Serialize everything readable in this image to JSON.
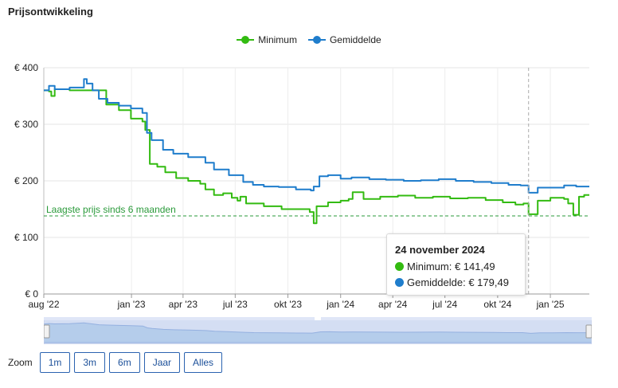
{
  "title": "Prijsontwikkeling",
  "colors": {
    "minimum": "#33bb11",
    "gemiddelde": "#1f7dcc",
    "reference": "#2a9a3a"
  },
  "legend": [
    {
      "label": "Minimum",
      "series": "minimum"
    },
    {
      "label": "Gemiddelde",
      "series": "gemiddelde"
    }
  ],
  "reference_line": {
    "label": "Laagste prijs sinds 6 maanden",
    "value": 138
  },
  "tooltip": {
    "date": "24 november 2024",
    "rows": [
      {
        "label": "Minimum: € 141,49",
        "series": "minimum"
      },
      {
        "label": "Gemiddelde: € 179,49",
        "series": "gemiddelde"
      }
    ]
  },
  "zoom": {
    "label": "Zoom",
    "buttons": [
      "1m",
      "3m",
      "6m",
      "Jaar",
      "Alles"
    ]
  },
  "chart_data": {
    "type": "line",
    "x_range": [
      "2022-08-01",
      "2025-03-10"
    ],
    "ylim": [
      0,
      400
    ],
    "y_ticks": [
      {
        "value": 0,
        "label": "€ 0"
      },
      {
        "value": 100,
        "label": "€ 100"
      },
      {
        "value": 200,
        "label": "€ 200"
      },
      {
        "value": 300,
        "label": "€ 300"
      },
      {
        "value": 400,
        "label": "€ 400"
      }
    ],
    "x_ticks": [
      {
        "date": "2022-08-01",
        "label": "aug '22"
      },
      {
        "date": "2023-01-01",
        "label": "jan '23"
      },
      {
        "date": "2023-04-01",
        "label": "apr '23"
      },
      {
        "date": "2023-07-01",
        "label": "jul '23"
      },
      {
        "date": "2023-10-01",
        "label": "okt '23"
      },
      {
        "date": "2024-01-01",
        "label": "jan '24"
      },
      {
        "date": "2024-04-01",
        "label": "apr '24"
      },
      {
        "date": "2024-07-01",
        "label": "jul '24"
      },
      {
        "date": "2024-10-01",
        "label": "okt '24"
      },
      {
        "date": "2025-01-01",
        "label": "jan '25"
      }
    ],
    "grid": true,
    "legend_position": "top-center",
    "crosshair_date": "2024-11-24",
    "series": [
      {
        "name": "Minimum",
        "key": "minimum",
        "x": [
          "2022-08-01",
          "2022-08-10",
          "2022-08-14",
          "2022-08-20",
          "2022-09-15",
          "2022-10-15",
          "2022-11-10",
          "2022-11-18",
          "2022-12-10",
          "2022-12-31",
          "2023-01-20",
          "2023-01-25",
          "2023-02-02",
          "2023-02-15",
          "2023-03-01",
          "2023-03-20",
          "2023-04-10",
          "2023-05-01",
          "2023-05-10",
          "2023-05-25",
          "2023-06-10",
          "2023-06-25",
          "2023-07-05",
          "2023-07-10",
          "2023-07-20",
          "2023-08-20",
          "2023-09-20",
          "2023-10-20",
          "2023-11-05",
          "2023-11-08",
          "2023-11-15",
          "2023-11-20",
          "2023-12-10",
          "2024-01-01",
          "2024-01-15",
          "2024-01-22",
          "2024-02-10",
          "2024-03-10",
          "2024-04-10",
          "2024-05-10",
          "2024-06-10",
          "2024-07-10",
          "2024-08-10",
          "2024-09-10",
          "2024-10-10",
          "2024-11-01",
          "2024-11-15",
          "2024-11-24",
          "2024-12-10",
          "2025-01-01",
          "2025-01-25",
          "2025-02-01",
          "2025-02-10",
          "2025-02-20",
          "2025-03-01",
          "2025-03-10"
        ],
        "values": [
          360,
          358,
          350,
          362,
          360,
          360,
          360,
          335,
          325,
          310,
          305,
          290,
          230,
          225,
          215,
          205,
          200,
          195,
          185,
          175,
          178,
          170,
          165,
          172,
          160,
          155,
          150,
          150,
          150,
          145,
          125,
          155,
          162,
          165,
          168,
          180,
          168,
          172,
          174,
          170,
          172,
          169,
          170,
          166,
          162,
          158,
          160,
          141,
          165,
          170,
          168,
          160,
          140,
          172,
          175,
          175
        ]
      },
      {
        "name": "Gemiddelde",
        "key": "gemiddelde",
        "x": [
          "2022-08-01",
          "2022-08-10",
          "2022-08-20",
          "2022-09-15",
          "2022-10-10",
          "2022-10-15",
          "2022-10-25",
          "2022-11-05",
          "2022-11-20",
          "2022-12-10",
          "2022-12-31",
          "2023-01-20",
          "2023-01-28",
          "2023-02-05",
          "2023-02-25",
          "2023-03-15",
          "2023-04-10",
          "2023-05-10",
          "2023-05-25",
          "2023-06-20",
          "2023-07-15",
          "2023-08-01",
          "2023-08-20",
          "2023-09-15",
          "2023-10-15",
          "2023-11-10",
          "2023-11-15",
          "2023-11-25",
          "2023-12-10",
          "2024-01-01",
          "2024-01-20",
          "2024-02-20",
          "2024-03-20",
          "2024-04-20",
          "2024-05-20",
          "2024-06-20",
          "2024-07-20",
          "2024-08-20",
          "2024-09-20",
          "2024-10-20",
          "2024-11-10",
          "2024-11-24",
          "2024-12-10",
          "2025-01-01",
          "2025-01-25",
          "2025-02-15",
          "2025-03-10"
        ],
        "values": [
          360,
          368,
          362,
          365,
          380,
          372,
          360,
          345,
          338,
          333,
          328,
          320,
          285,
          272,
          255,
          248,
          242,
          232,
          220,
          210,
          198,
          193,
          190,
          189,
          185,
          183,
          190,
          208,
          210,
          204,
          206,
          203,
          202,
          200,
          201,
          203,
          200,
          198,
          196,
          193,
          192,
          179,
          188,
          188,
          192,
          190,
          190
        ]
      }
    ]
  }
}
